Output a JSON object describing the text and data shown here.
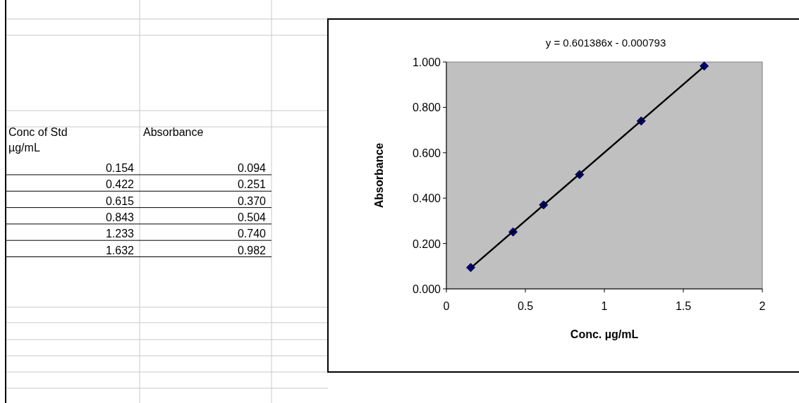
{
  "chart_data": {
    "type": "scatter",
    "xlabel": "Conc. µg/mL",
    "ylabel": "Absorbance",
    "annotations": [
      "y = 0.601386x - 0.000793",
      "Conc of Std",
      "µg/mL",
      "Absorbance",
      "0.154",
      "0.094",
      "0.422",
      "0.251",
      "0.615",
      "0.370",
      "0.843",
      "0.504",
      "1.233",
      "0.740",
      "1.632",
      "0.982"
    ],
    "x": [
      0.154,
      0.422,
      0.615,
      0.843,
      1.233,
      1.632
    ],
    "series": [
      {
        "color": "#000080",
        "marker": "diamond",
        "values": [
          0.094,
          0.251,
          0.37,
          0.504,
          0.74,
          0.982
        ]
      },
      {
        "type": "line",
        "color": "#000000",
        "x": [
          0.154,
          1.632
        ],
        "values": [
          0.092,
          0.981
        ]
      }
    ],
    "xlim": [
      0,
      2
    ],
    "xticks": [
      0,
      0.5,
      1,
      1.5,
      2
    ],
    "ylim": [
      0,
      1
    ],
    "yticks": [
      {
        "value": 0,
        "label": "0.000"
      },
      {
        "value": 0.2,
        "label": "0.200"
      },
      {
        "value": 0.4,
        "label": "0.400"
      },
      {
        "value": 0.6,
        "label": "0.600"
      },
      {
        "value": 0.8,
        "label": "0.800"
      },
      {
        "value": 1,
        "label": "1.000"
      }
    ],
    "grid": false
  }
}
